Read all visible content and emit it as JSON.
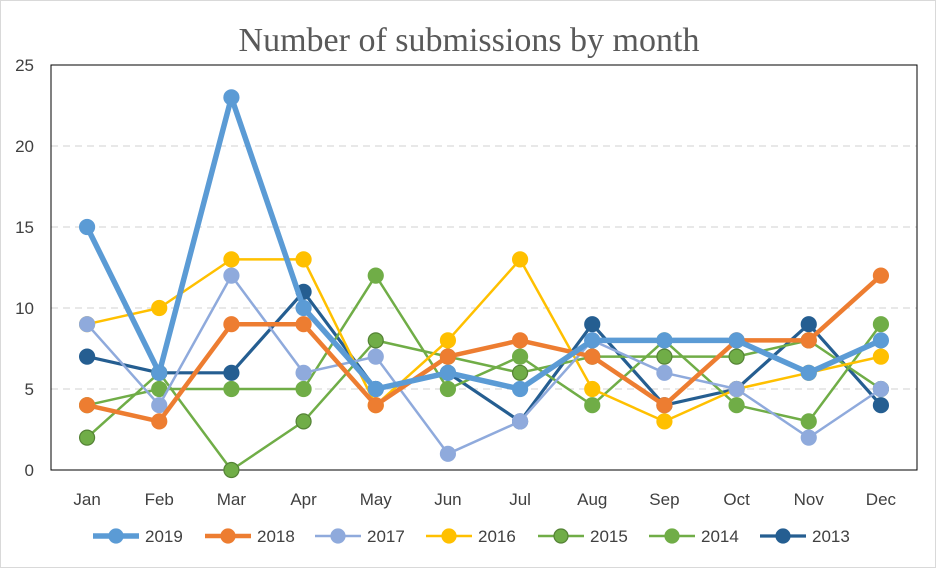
{
  "chart_data": {
    "type": "line",
    "title": "Number of submissions by month",
    "xlabel": "",
    "ylabel": "",
    "categories": [
      "Jan",
      "Feb",
      "Mar",
      "Apr",
      "May",
      "Jun",
      "Jul",
      "Aug",
      "Sep",
      "Oct",
      "Nov",
      "Dec"
    ],
    "ylim": [
      0,
      25
    ],
    "yticks": [
      "0",
      "5",
      "10",
      "15",
      "20",
      "25"
    ],
    "grid": "horizontal dashed",
    "legend": "bottom",
    "series": [
      {
        "name": "2019",
        "color": "#5b9bd5",
        "values": [
          15,
          6,
          23,
          10,
          5,
          6,
          5,
          8,
          8,
          8,
          6,
          8
        ]
      },
      {
        "name": "2018",
        "color": "#ed7d31",
        "values": [
          4,
          3,
          9,
          9,
          4,
          7,
          8,
          7,
          4,
          8,
          8,
          12
        ]
      },
      {
        "name": "2017",
        "color": "#8faadc",
        "values": [
          9,
          4,
          12,
          6,
          7,
          1,
          3,
          8,
          6,
          5,
          2,
          5
        ]
      },
      {
        "name": "2016",
        "color": "#ffc000",
        "values": [
          9,
          10,
          13,
          13,
          4,
          8,
          13,
          5,
          3,
          5,
          6,
          7
        ]
      },
      {
        "name": "2015",
        "color": "#70ad47",
        "values": [
          2,
          6,
          0,
          3,
          8,
          7,
          6,
          7,
          7,
          7,
          8,
          5
        ]
      },
      {
        "name": "2014",
        "color": "#70ad47",
        "values": [
          4,
          5,
          5,
          5,
          12,
          5,
          7,
          4,
          8,
          4,
          3,
          9
        ]
      },
      {
        "name": "2013",
        "color": "#255e91",
        "values": [
          7,
          6,
          6,
          11,
          5,
          6,
          3,
          9,
          4,
          5,
          9,
          4
        ]
      }
    ]
  }
}
